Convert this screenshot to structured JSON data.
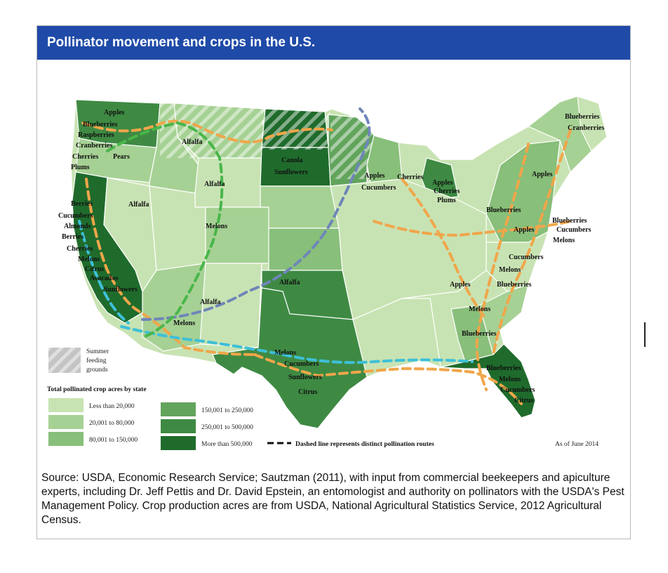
{
  "title": "Pollinator movement and crops in the U.S.",
  "map": {
    "summer_legend_lines": [
      "Summer",
      "feeding",
      "grounds"
    ],
    "legend_title": "Total pollinated crop acres by state",
    "legend": [
      {
        "label": "Less than 20,000",
        "color": "#c8e3b3"
      },
      {
        "label": "20,001 to 80,000",
        "color": "#a6d194"
      },
      {
        "label": "80,001 to 150,000",
        "color": "#88bf7a"
      },
      {
        "label": "150,001 to 250,000",
        "color": "#62a45c"
      },
      {
        "label": "250,001 to 500,000",
        "color": "#3e8a43"
      },
      {
        "label": "More than 500,000",
        "color": "#1f6b2c"
      }
    ],
    "route_note": "Dashed line represents distinct pollination routes",
    "date_note": "As of June 2014",
    "route_colors": [
      "#f0a64a",
      "#3ec0d8",
      "#6f86b8",
      "#49b64a"
    ],
    "crop_labels": [
      "Apples",
      "Blueberries",
      "Raspberries",
      "Cranberries",
      "Cherries",
      "Pears",
      "Plums",
      "Alfalfa",
      "Canola",
      "Sunflowers",
      "Alfalfa",
      "Alfalfa",
      "Apples",
      "Cucumbers",
      "Cherries",
      "Apples",
      "Cherries",
      "Plums",
      "Blueberries",
      "Cranberries",
      "Apples",
      "Blueberries",
      "Blueberries",
      "Apples",
      "Cucumbers",
      "Melons",
      "Berries",
      "Cucumbers",
      "Almonds",
      "Berries",
      "Cherries",
      "Melons",
      "Citrus",
      "Avocados",
      "Sunflowers",
      "Melons",
      "Alfalfa",
      "Alfalfa",
      "Melons",
      "Cucumbers",
      "Melons",
      "Apples",
      "Blueberries",
      "Melons",
      "Blueberries",
      "Melons",
      "Cucumbers",
      "Sunflowers",
      "Citrus",
      "Blueberries",
      "Melons",
      "Cucumbers",
      "Citrus"
    ]
  },
  "source_text": "Source:  USDA, Economic Research Service; Sautzman (2011), with input from commercial beekeepers and apiculture experts, including Dr. Jeff Pettis and Dr. David Epstein, an entomologist and authority on pollinators with the USDA's Pest Management Policy.  Crop production acres are from USDA, National Agricultural Statistics Service, 2012 Agricultural Census."
}
